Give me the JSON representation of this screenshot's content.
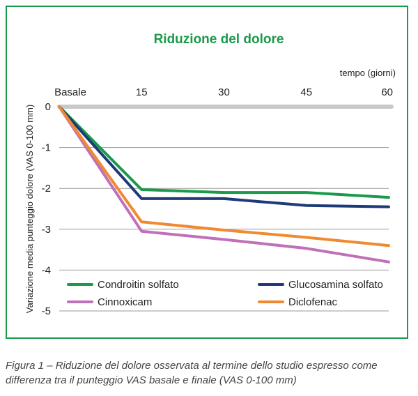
{
  "chart_data": {
    "type": "line",
    "title": "Riduzione del dolore",
    "xlabel": "tempo (giorni)",
    "ylabel": "Variazione media punteggio dolore (VAS 0-100 mm)",
    "x": [
      0,
      15,
      60
    ],
    "x_tick_labels": [
      "Basale",
      "15",
      "30",
      "45",
      "60"
    ],
    "x_ticks": [
      0,
      15,
      30,
      45,
      60
    ],
    "xlim": [
      0,
      60
    ],
    "ylim": [
      -5,
      0
    ],
    "y_ticks": [
      0,
      -1,
      -2,
      -3,
      -4,
      -5
    ],
    "y_tick_labels": [
      "0",
      "-1",
      "-2",
      "-3",
      "-4",
      "-5"
    ],
    "grid": true,
    "legend_position": "bottom",
    "series": [
      {
        "name": "Condroitin solfato",
        "color": "#1a9a4a",
        "points": [
          [
            0,
            0
          ],
          [
            15,
            -2.03
          ],
          [
            30,
            -2.1
          ],
          [
            45,
            -2.1
          ],
          [
            60,
            -2.22
          ]
        ]
      },
      {
        "name": "Glucosamina solfato",
        "color": "#1f3a78",
        "points": [
          [
            0,
            0
          ],
          [
            15,
            -2.25
          ],
          [
            30,
            -2.25
          ],
          [
            45,
            -2.42
          ],
          [
            60,
            -2.45
          ]
        ]
      },
      {
        "name": "Cinnoxicam",
        "color": "#c070b8",
        "points": [
          [
            0,
            0
          ],
          [
            15,
            -3.05
          ],
          [
            30,
            -3.25
          ],
          [
            45,
            -3.47
          ],
          [
            60,
            -3.8
          ]
        ]
      },
      {
        "name": "Diclofenac",
        "color": "#f08a30",
        "points": [
          [
            0,
            0
          ],
          [
            15,
            -2.82
          ],
          [
            30,
            -3.02
          ],
          [
            45,
            -3.2
          ],
          [
            60,
            -3.4
          ]
        ]
      }
    ],
    "zero_line_color": "#c8c8c8",
    "title_color": "#1a9a4a"
  },
  "caption": "Figura 1 – Riduzione del dolore osservata al termine dello studio espresso come differenza tra il punteggio VAS basale e finale (VAS 0-100 mm)"
}
